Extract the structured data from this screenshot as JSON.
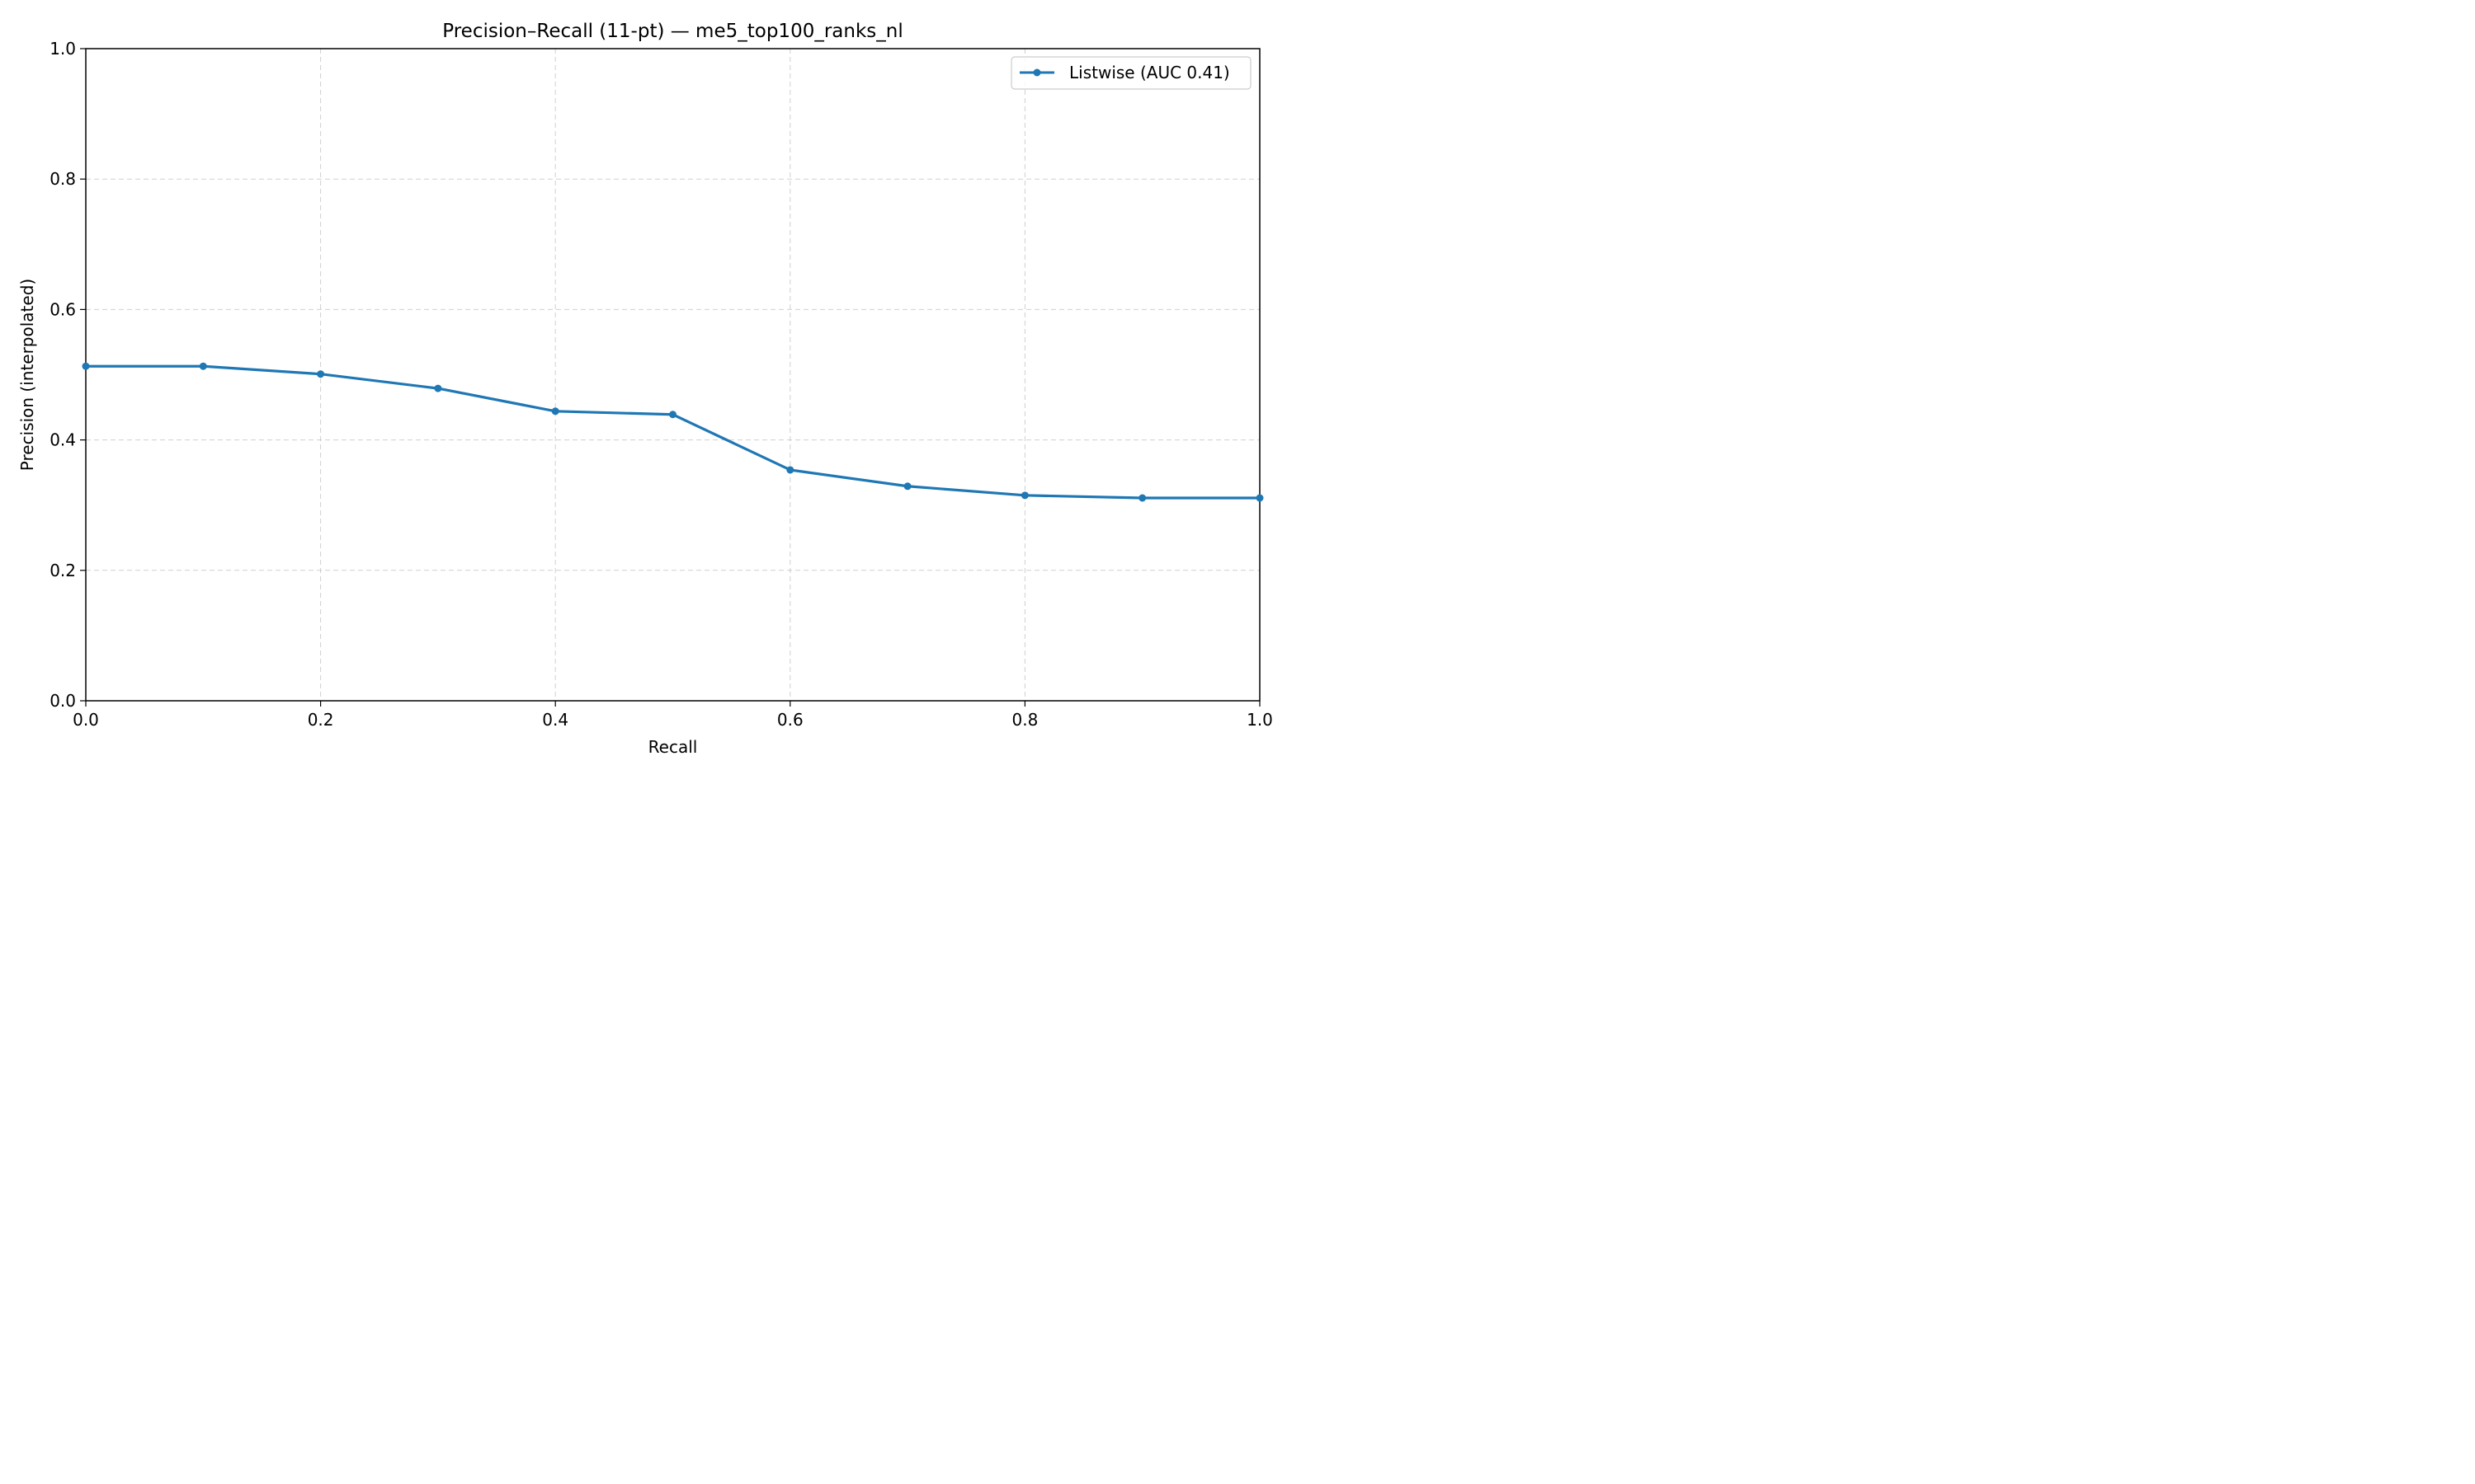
{
  "chart_data": {
    "type": "line",
    "title": "Precision–Recall (11-pt) — me5_top100_ranks_nl",
    "xlabel": "Recall",
    "ylabel": "Precision (interpolated)",
    "xlim": [
      0.0,
      1.0
    ],
    "ylim": [
      0.0,
      1.0
    ],
    "xticks": [
      "0.0",
      "0.2",
      "0.4",
      "0.6",
      "0.8",
      "1.0"
    ],
    "yticks": [
      "0.0",
      "0.2",
      "0.4",
      "0.6",
      "0.8",
      "1.0"
    ],
    "grid": true,
    "legend_position": "top-right",
    "x": [
      0.0,
      0.1,
      0.2,
      0.3,
      0.4,
      0.5,
      0.6,
      0.7,
      0.8,
      0.9,
      1.0
    ],
    "series": [
      {
        "name": "Listwise (AUC 0.41)",
        "color": "#1f77b4",
        "values": [
          0.513,
          0.513,
          0.501,
          0.479,
          0.444,
          0.439,
          0.354,
          0.329,
          0.315,
          0.311,
          0.311
        ]
      }
    ]
  }
}
